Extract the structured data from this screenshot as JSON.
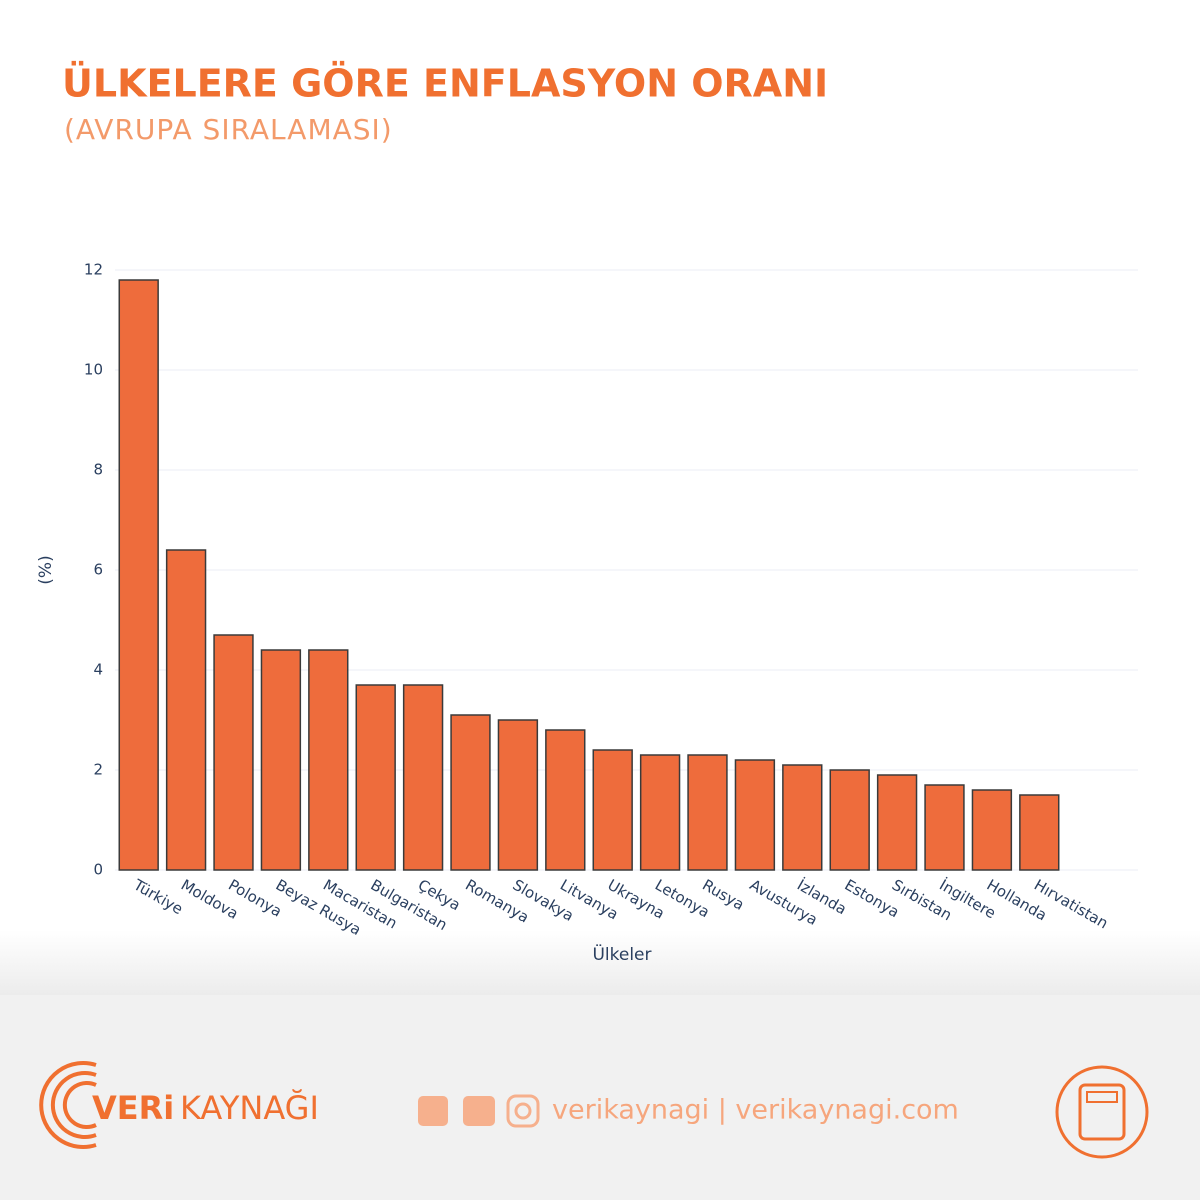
{
  "chart_data": {
    "type": "bar",
    "title": "ÜLKELERE GÖRE ENFLASYON ORANI",
    "subtitle": "(AVRUPA SIRALAMASI)",
    "x_label": "Ülkeler",
    "y_label": "(%)",
    "categories": [
      "Türkiye",
      "Moldova",
      "Polonya",
      "Beyaz Rusya",
      "Macaristan",
      "Bulgaristan",
      "Çekya",
      "Romanya",
      "Slovakya",
      "Litvanya",
      "Ukrayna",
      "Letonya",
      "Rusya",
      "Avusturya",
      "İzlanda",
      "Estonya",
      "Sırbistan",
      "İngiltere",
      "Hollanda",
      "Hırvatistan"
    ],
    "values": [
      11.8,
      6.4,
      4.7,
      4.4,
      4.4,
      3.7,
      3.7,
      3.1,
      3.0,
      2.8,
      2.4,
      2.3,
      2.3,
      2.2,
      2.1,
      2.0,
      1.9,
      1.7,
      1.6,
      1.5
    ],
    "color": "#ee6c3c",
    "ylim": [
      0,
      12
    ],
    "yticks": [
      0,
      2,
      4,
      6,
      8,
      10,
      12
    ],
    "grid": true
  },
  "footer": {
    "brand_bold": "VERi",
    "brand": "KAYNAĞI",
    "social": "verikaynagi | verikaynagi.com"
  }
}
